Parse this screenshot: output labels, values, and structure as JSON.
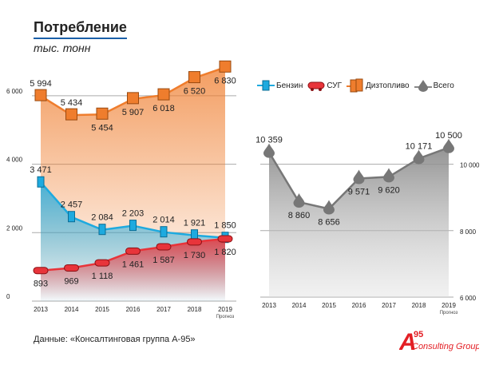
{
  "title": "Потребление",
  "subtitle": "тыс. тонн",
  "source": "Данные: «Консалтинговая группа А-95»",
  "logo": {
    "big": "A",
    "num": "95",
    "text": "Consulting Group"
  },
  "legend": [
    {
      "name": "Бензин",
      "icon": "fuel-pump-icon",
      "color": "#1eaadf"
    },
    {
      "name": "СУГ",
      "icon": "tank-car-icon",
      "color": "#e8343a"
    },
    {
      "name": "Дизтопливо",
      "icon": "barrels-icon",
      "color": "#ef7d2d"
    },
    {
      "name": "Всего",
      "icon": "drop-icon",
      "color": "#777777"
    }
  ],
  "chart_data": [
    {
      "type": "line",
      "categories": [
        "2013",
        "2014",
        "2015",
        "2016",
        "2017",
        "2018",
        "2019"
      ],
      "x_sublabel": {
        "2019": "Прогноз"
      },
      "ylim": [
        0,
        7000
      ],
      "yticks": [
        0,
        2000,
        4000,
        6000
      ],
      "ytick_labels": [
        "0",
        "2 000",
        "4 000",
        "6 000"
      ],
      "grid": true,
      "series": [
        {
          "name": "Дизтопливо",
          "color": "#ef7d2d",
          "values": [
            5994,
            5434,
            5454,
            5907,
            6018,
            6520,
            6830
          ],
          "labels": [
            "5 994",
            "5 434",
            "5 454",
            "5 907",
            "6 018",
            "6 520",
            "6 830"
          ],
          "label_pos": [
            "above",
            "above",
            "below",
            "below",
            "below",
            "below",
            "below"
          ]
        },
        {
          "name": "Бензин",
          "color": "#1eaadf",
          "values": [
            3471,
            2457,
            2084,
            2203,
            2014,
            1921,
            1850
          ],
          "labels": [
            "3 471",
            "2 457",
            "2 084",
            "2 203",
            "2 014",
            "1 921",
            "1 850"
          ],
          "label_pos": [
            "above",
            "above",
            "above",
            "above",
            "above",
            "above",
            "above"
          ]
        },
        {
          "name": "СУГ",
          "color": "#e8343a",
          "values": [
            893,
            969,
            1118,
            1461,
            1587,
            1730,
            1820
          ],
          "labels": [
            "893",
            "969",
            "1 118",
            "1 461",
            "1 587",
            "1 730",
            "1 820"
          ],
          "label_pos": [
            "below",
            "below",
            "below",
            "below",
            "below",
            "below",
            "below"
          ]
        }
      ]
    },
    {
      "type": "area",
      "categories": [
        "2013",
        "2014",
        "2015",
        "2016",
        "2017",
        "2018",
        "2019"
      ],
      "x_sublabel": {
        "2019": "Прогноз"
      },
      "ylim": [
        6000,
        11000
      ],
      "yticks": [
        6000,
        8000,
        10000
      ],
      "ytick_labels": [
        "6 000",
        "8 000",
        "10 000"
      ],
      "grid": true,
      "series": [
        {
          "name": "Всего",
          "color": "#777777",
          "values": [
            10359,
            8860,
            8656,
            9571,
            9620,
            10171,
            10500
          ],
          "labels": [
            "10 359",
            "8 860",
            "8 656",
            "9 571",
            "9 620",
            "10 171",
            "10 500"
          ],
          "label_pos": [
            "above",
            "below",
            "below",
            "below",
            "below",
            "above",
            "above"
          ]
        }
      ]
    }
  ]
}
